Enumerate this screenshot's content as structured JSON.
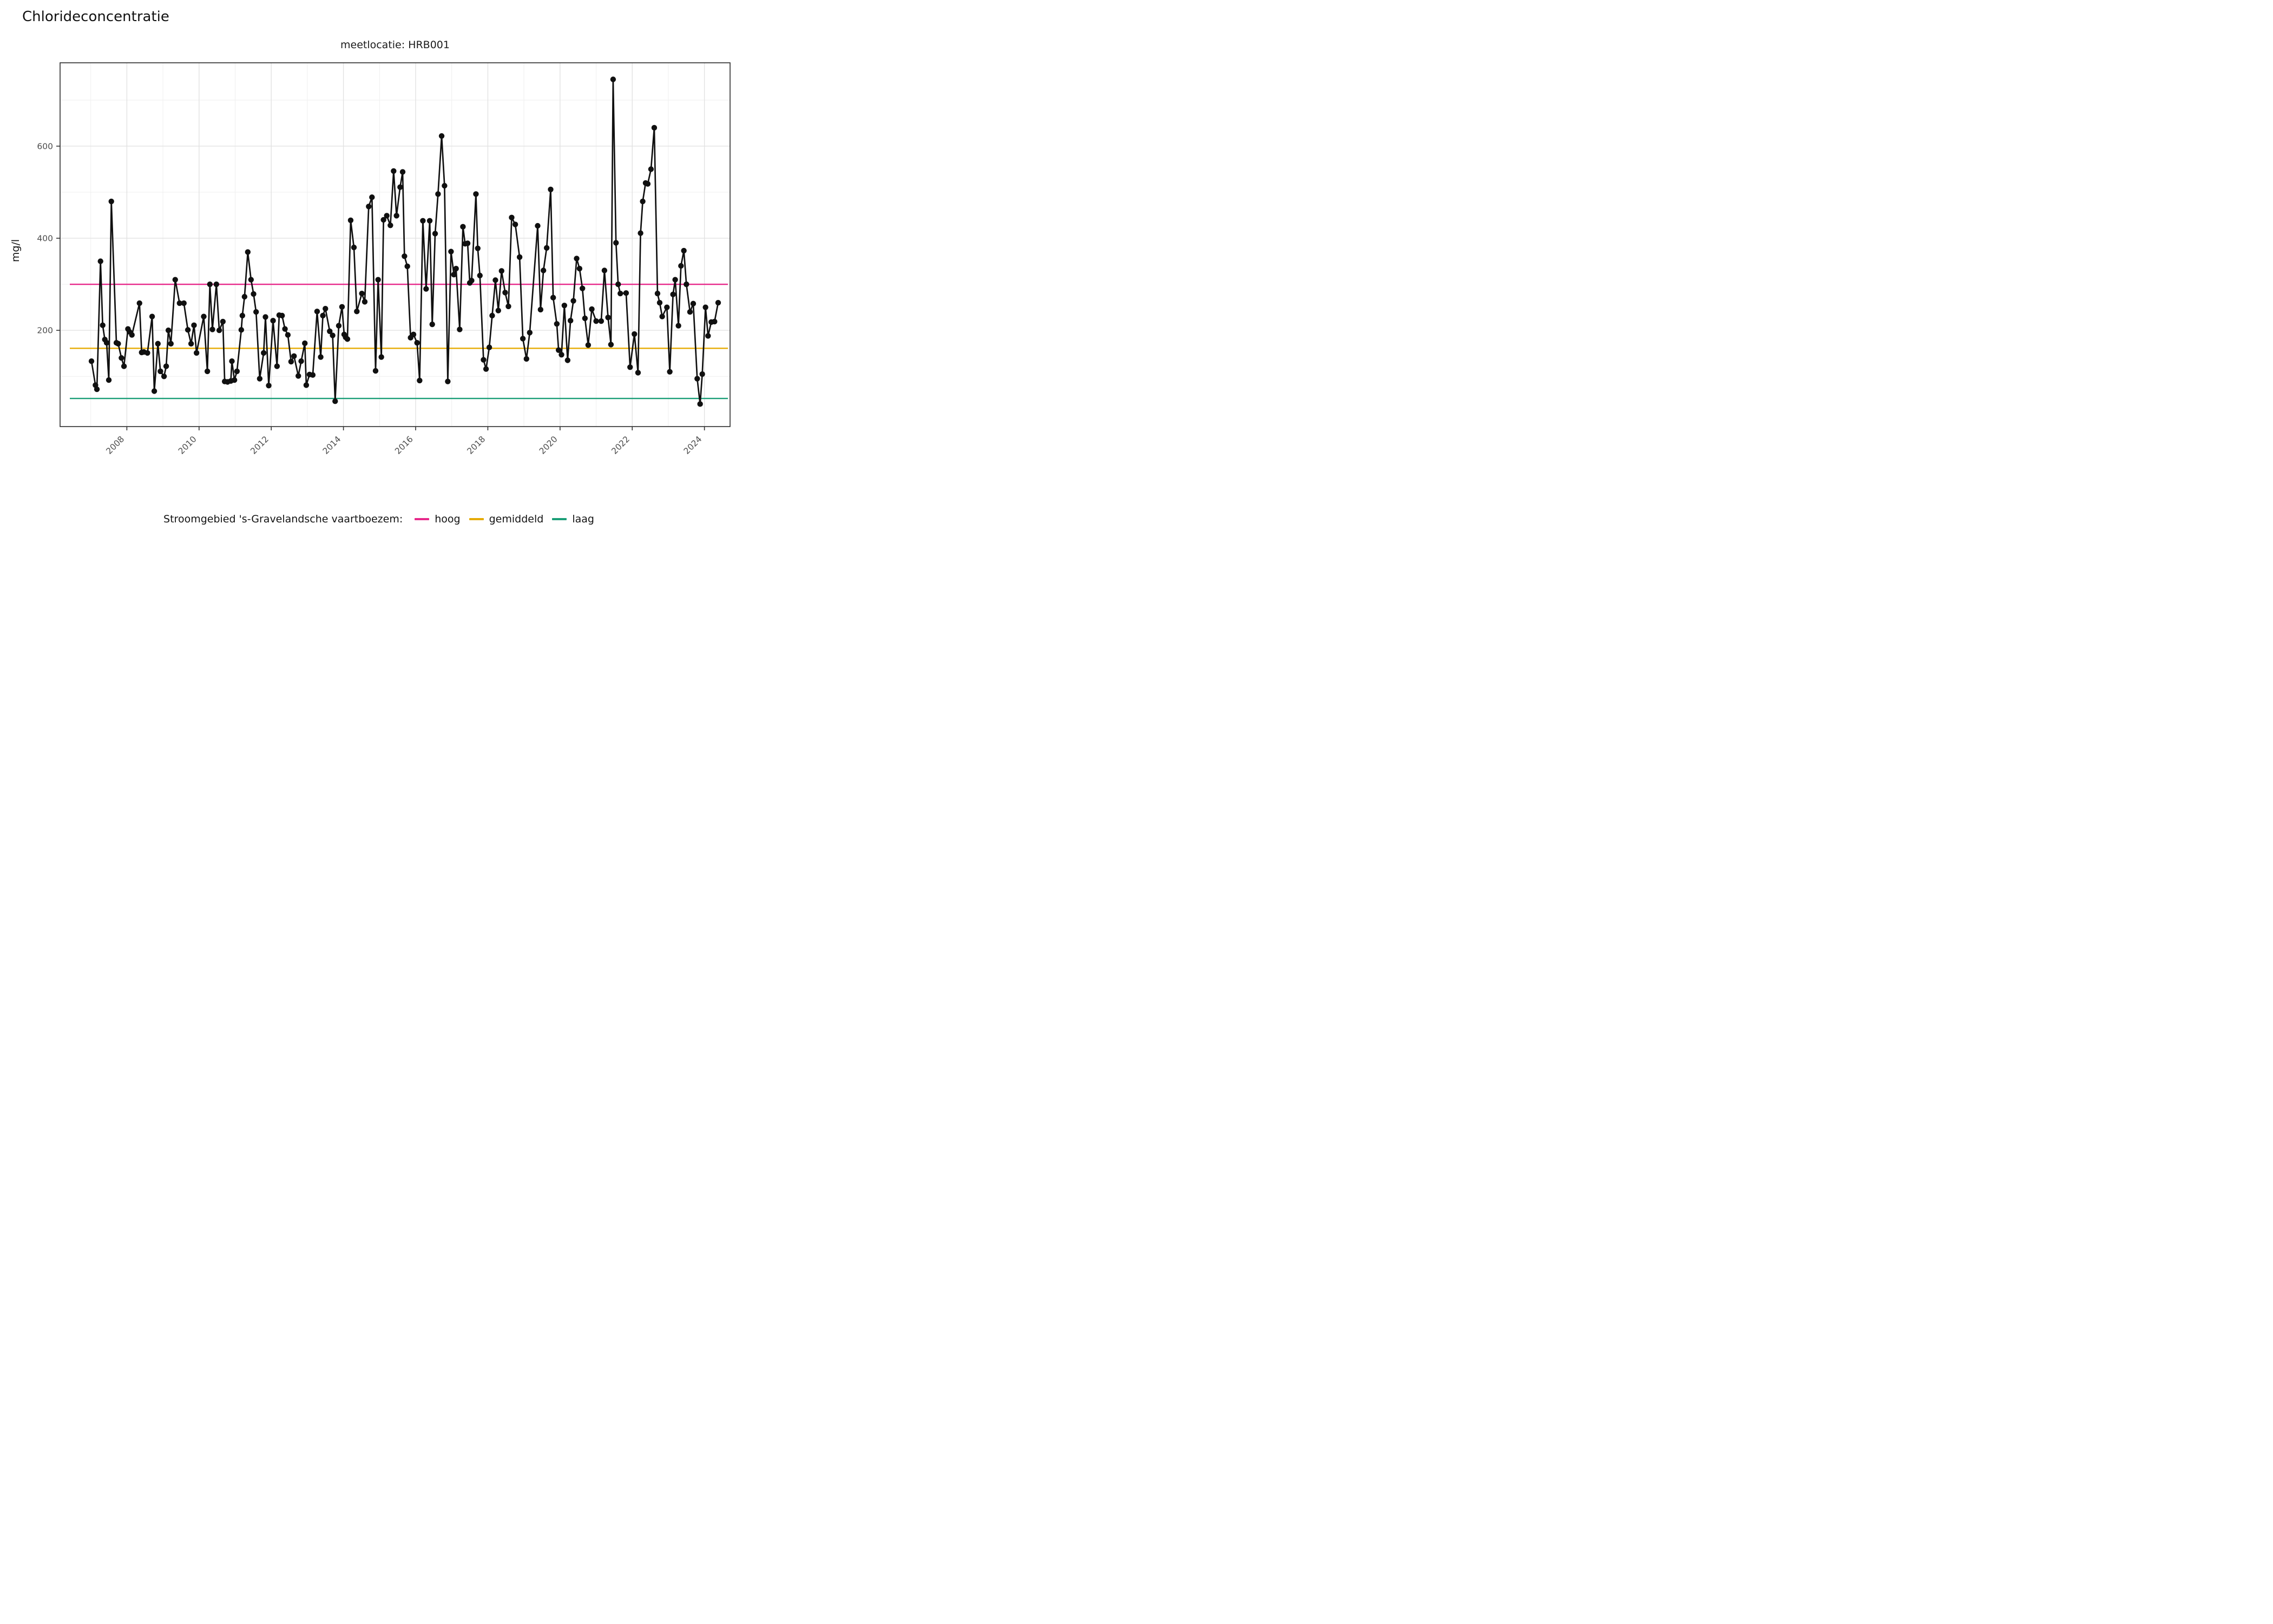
{
  "title": "Chlorideconcentratie",
  "subtitle": "meetlocatie: HRB001",
  "y_axis": {
    "label": "mg/l",
    "major_ticks": [
      200,
      400,
      600
    ],
    "minor_ticks": [
      100,
      300,
      500,
      700
    ]
  },
  "x_axis": {
    "major_ticks": [
      2008,
      2010,
      2012,
      2014,
      2016,
      2018,
      2020,
      2022,
      2024
    ],
    "minor_ticks": [
      2007,
      2009,
      2011,
      2013,
      2015,
      2017,
      2019,
      2021,
      2023
    ]
  },
  "legend": {
    "title": "Stroomgebied 's-Gravelandsche vaartboezem:",
    "items": [
      {
        "label": "hoog",
        "color": "#E7298A"
      },
      {
        "label": "gemiddeld",
        "color": "#E6AB02"
      },
      {
        "label": "laag",
        "color": "#1B9E77"
      }
    ]
  },
  "chart_data": {
    "type": "line",
    "title": "Chlorideconcentratie",
    "subtitle": "meetlocatie: HRB001",
    "ylabel": "mg/l",
    "xlabel": "",
    "xlim": [
      2006.15,
      2024.71
    ],
    "ylim": [
      -9,
      781
    ],
    "grid": "on",
    "legend_position": "bottom",
    "point_color": "#101010",
    "line_color": "#101010",
    "ref_lines": [
      {
        "name": "hoog",
        "value": 300,
        "color": "#E7298A"
      },
      {
        "name": "gemiddeld",
        "value": 161,
        "color": "#E6AB02"
      },
      {
        "name": "laag",
        "value": 52,
        "color": "#1B9E77"
      }
    ],
    "series": [
      {
        "name": "chloride",
        "points": [
          [
            2007.02,
            133
          ],
          [
            2007.13,
            81
          ],
          [
            2007.17,
            72
          ],
          [
            2007.27,
            350
          ],
          [
            2007.33,
            211
          ],
          [
            2007.39,
            180
          ],
          [
            2007.44,
            173
          ],
          [
            2007.5,
            92
          ],
          [
            2007.57,
            480
          ],
          [
            2007.71,
            173
          ],
          [
            2007.76,
            171
          ],
          [
            2007.85,
            140
          ],
          [
            2007.92,
            122
          ],
          [
            2008.03,
            203
          ],
          [
            2008.07,
            197
          ],
          [
            2008.14,
            190
          ],
          [
            2008.35,
            259
          ],
          [
            2008.41,
            152
          ],
          [
            2008.47,
            153
          ],
          [
            2008.57,
            151
          ],
          [
            2008.7,
            230
          ],
          [
            2008.76,
            68
          ],
          [
            2008.86,
            171
          ],
          [
            2008.93,
            111
          ],
          [
            2009.03,
            100
          ],
          [
            2009.09,
            122
          ],
          [
            2009.15,
            200
          ],
          [
            2009.22,
            171
          ],
          [
            2009.34,
            310
          ],
          [
            2009.46,
            259
          ],
          [
            2009.58,
            259
          ],
          [
            2009.69,
            201
          ],
          [
            2009.78,
            171
          ],
          [
            2009.86,
            211
          ],
          [
            2009.93,
            151
          ],
          [
            2010.13,
            230
          ],
          [
            2010.23,
            111
          ],
          [
            2010.3,
            300
          ],
          [
            2010.37,
            202
          ],
          [
            2010.48,
            300
          ],
          [
            2010.56,
            200
          ],
          [
            2010.66,
            219
          ],
          [
            2010.71,
            89
          ],
          [
            2010.79,
            88
          ],
          [
            2010.88,
            90
          ],
          [
            2010.91,
            133
          ],
          [
            2010.98,
            92
          ],
          [
            2011.05,
            111
          ],
          [
            2011.17,
            201
          ],
          [
            2011.2,
            232
          ],
          [
            2011.26,
            273
          ],
          [
            2011.35,
            370
          ],
          [
            2011.44,
            310
          ],
          [
            2011.51,
            279
          ],
          [
            2011.58,
            240
          ],
          [
            2011.68,
            95
          ],
          [
            2011.79,
            151
          ],
          [
            2011.84,
            229
          ],
          [
            2011.93,
            80
          ],
          [
            2012.05,
            221
          ],
          [
            2012.16,
            122
          ],
          [
            2012.22,
            233
          ],
          [
            2012.3,
            232
          ],
          [
            2012.38,
            203
          ],
          [
            2012.46,
            190
          ],
          [
            2012.55,
            132
          ],
          [
            2012.63,
            144
          ],
          [
            2012.75,
            101
          ],
          [
            2012.83,
            133
          ],
          [
            2012.93,
            172
          ],
          [
            2012.97,
            81
          ],
          [
            2013.06,
            104
          ],
          [
            2013.15,
            103
          ],
          [
            2013.27,
            241
          ],
          [
            2013.37,
            142
          ],
          [
            2013.43,
            232
          ],
          [
            2013.5,
            247
          ],
          [
            2013.62,
            198
          ],
          [
            2013.7,
            189
          ],
          [
            2013.77,
            46
          ],
          [
            2013.87,
            210
          ],
          [
            2013.96,
            251
          ],
          [
            2014.02,
            191
          ],
          [
            2014.06,
            185
          ],
          [
            2014.11,
            181
          ],
          [
            2014.2,
            439
          ],
          [
            2014.29,
            380
          ],
          [
            2014.37,
            241
          ],
          [
            2014.51,
            280
          ],
          [
            2014.59,
            262
          ],
          [
            2014.7,
            469
          ],
          [
            2014.79,
            489
          ],
          [
            2014.89,
            112
          ],
          [
            2014.96,
            310
          ],
          [
            2015.05,
            142
          ],
          [
            2015.11,
            440
          ],
          [
            2015.2,
            449
          ],
          [
            2015.3,
            428
          ],
          [
            2015.39,
            546
          ],
          [
            2015.47,
            449
          ],
          [
            2015.57,
            511
          ],
          [
            2015.64,
            544
          ],
          [
            2015.69,
            361
          ],
          [
            2015.77,
            339
          ],
          [
            2015.86,
            184
          ],
          [
            2015.94,
            191
          ],
          [
            2016.04,
            173
          ],
          [
            2016.11,
            91
          ],
          [
            2016.2,
            438
          ],
          [
            2016.29,
            290
          ],
          [
            2016.39,
            438
          ],
          [
            2016.46,
            213
          ],
          [
            2016.54,
            410
          ],
          [
            2016.62,
            496
          ],
          [
            2016.72,
            622
          ],
          [
            2016.8,
            514
          ],
          [
            2016.89,
            89
          ],
          [
            2016.98,
            371
          ],
          [
            2017.06,
            321
          ],
          [
            2017.12,
            334
          ],
          [
            2017.22,
            202
          ],
          [
            2017.31,
            425
          ],
          [
            2017.37,
            388
          ],
          [
            2017.44,
            389
          ],
          [
            2017.5,
            303
          ],
          [
            2017.55,
            308
          ],
          [
            2017.67,
            496
          ],
          [
            2017.72,
            378
          ],
          [
            2017.78,
            319
          ],
          [
            2017.88,
            136
          ],
          [
            2017.95,
            116
          ],
          [
            2018.04,
            163
          ],
          [
            2018.12,
            232
          ],
          [
            2018.21,
            309
          ],
          [
            2018.29,
            243
          ],
          [
            2018.38,
            329
          ],
          [
            2018.48,
            282
          ],
          [
            2018.57,
            252
          ],
          [
            2018.66,
            445
          ],
          [
            2018.76,
            430
          ],
          [
            2018.88,
            359
          ],
          [
            2018.97,
            182
          ],
          [
            2019.07,
            138
          ],
          [
            2019.16,
            195
          ],
          [
            2019.38,
            427
          ],
          [
            2019.46,
            245
          ],
          [
            2019.54,
            330
          ],
          [
            2019.63,
            379
          ],
          [
            2019.74,
            506
          ],
          [
            2019.81,
            271
          ],
          [
            2019.91,
            214
          ],
          [
            2019.96,
            157
          ],
          [
            2020.04,
            147
          ],
          [
            2020.12,
            254
          ],
          [
            2020.21,
            135
          ],
          [
            2020.29,
            221
          ],
          [
            2020.37,
            264
          ],
          [
            2020.46,
            356
          ],
          [
            2020.54,
            334
          ],
          [
            2020.62,
            291
          ],
          [
            2020.69,
            226
          ],
          [
            2020.78,
            168
          ],
          [
            2020.88,
            246
          ],
          [
            2021.0,
            220
          ],
          [
            2021.14,
            220
          ],
          [
            2021.23,
            330
          ],
          [
            2021.33,
            228
          ],
          [
            2021.41,
            169
          ],
          [
            2021.47,
            745
          ],
          [
            2021.55,
            390
          ],
          [
            2021.61,
            300
          ],
          [
            2021.67,
            280
          ],
          [
            2021.83,
            281
          ],
          [
            2021.94,
            120
          ],
          [
            2022.06,
            192
          ],
          [
            2022.16,
            108
          ],
          [
            2022.23,
            411
          ],
          [
            2022.29,
            480
          ],
          [
            2022.37,
            520
          ],
          [
            2022.43,
            518
          ],
          [
            2022.52,
            550
          ],
          [
            2022.61,
            640
          ],
          [
            2022.7,
            280
          ],
          [
            2022.76,
            260
          ],
          [
            2022.83,
            230
          ],
          [
            2022.96,
            250
          ],
          [
            2023.04,
            110
          ],
          [
            2023.13,
            278
          ],
          [
            2023.19,
            310
          ],
          [
            2023.28,
            210
          ],
          [
            2023.35,
            340
          ],
          [
            2023.43,
            373
          ],
          [
            2023.5,
            300
          ],
          [
            2023.6,
            240
          ],
          [
            2023.69,
            258
          ],
          [
            2023.8,
            95
          ],
          [
            2023.88,
            40
          ],
          [
            2023.94,
            105
          ],
          [
            2024.03,
            250
          ],
          [
            2024.1,
            188
          ],
          [
            2024.19,
            218
          ],
          [
            2024.28,
            219
          ],
          [
            2024.38,
            260
          ]
        ]
      }
    ]
  }
}
